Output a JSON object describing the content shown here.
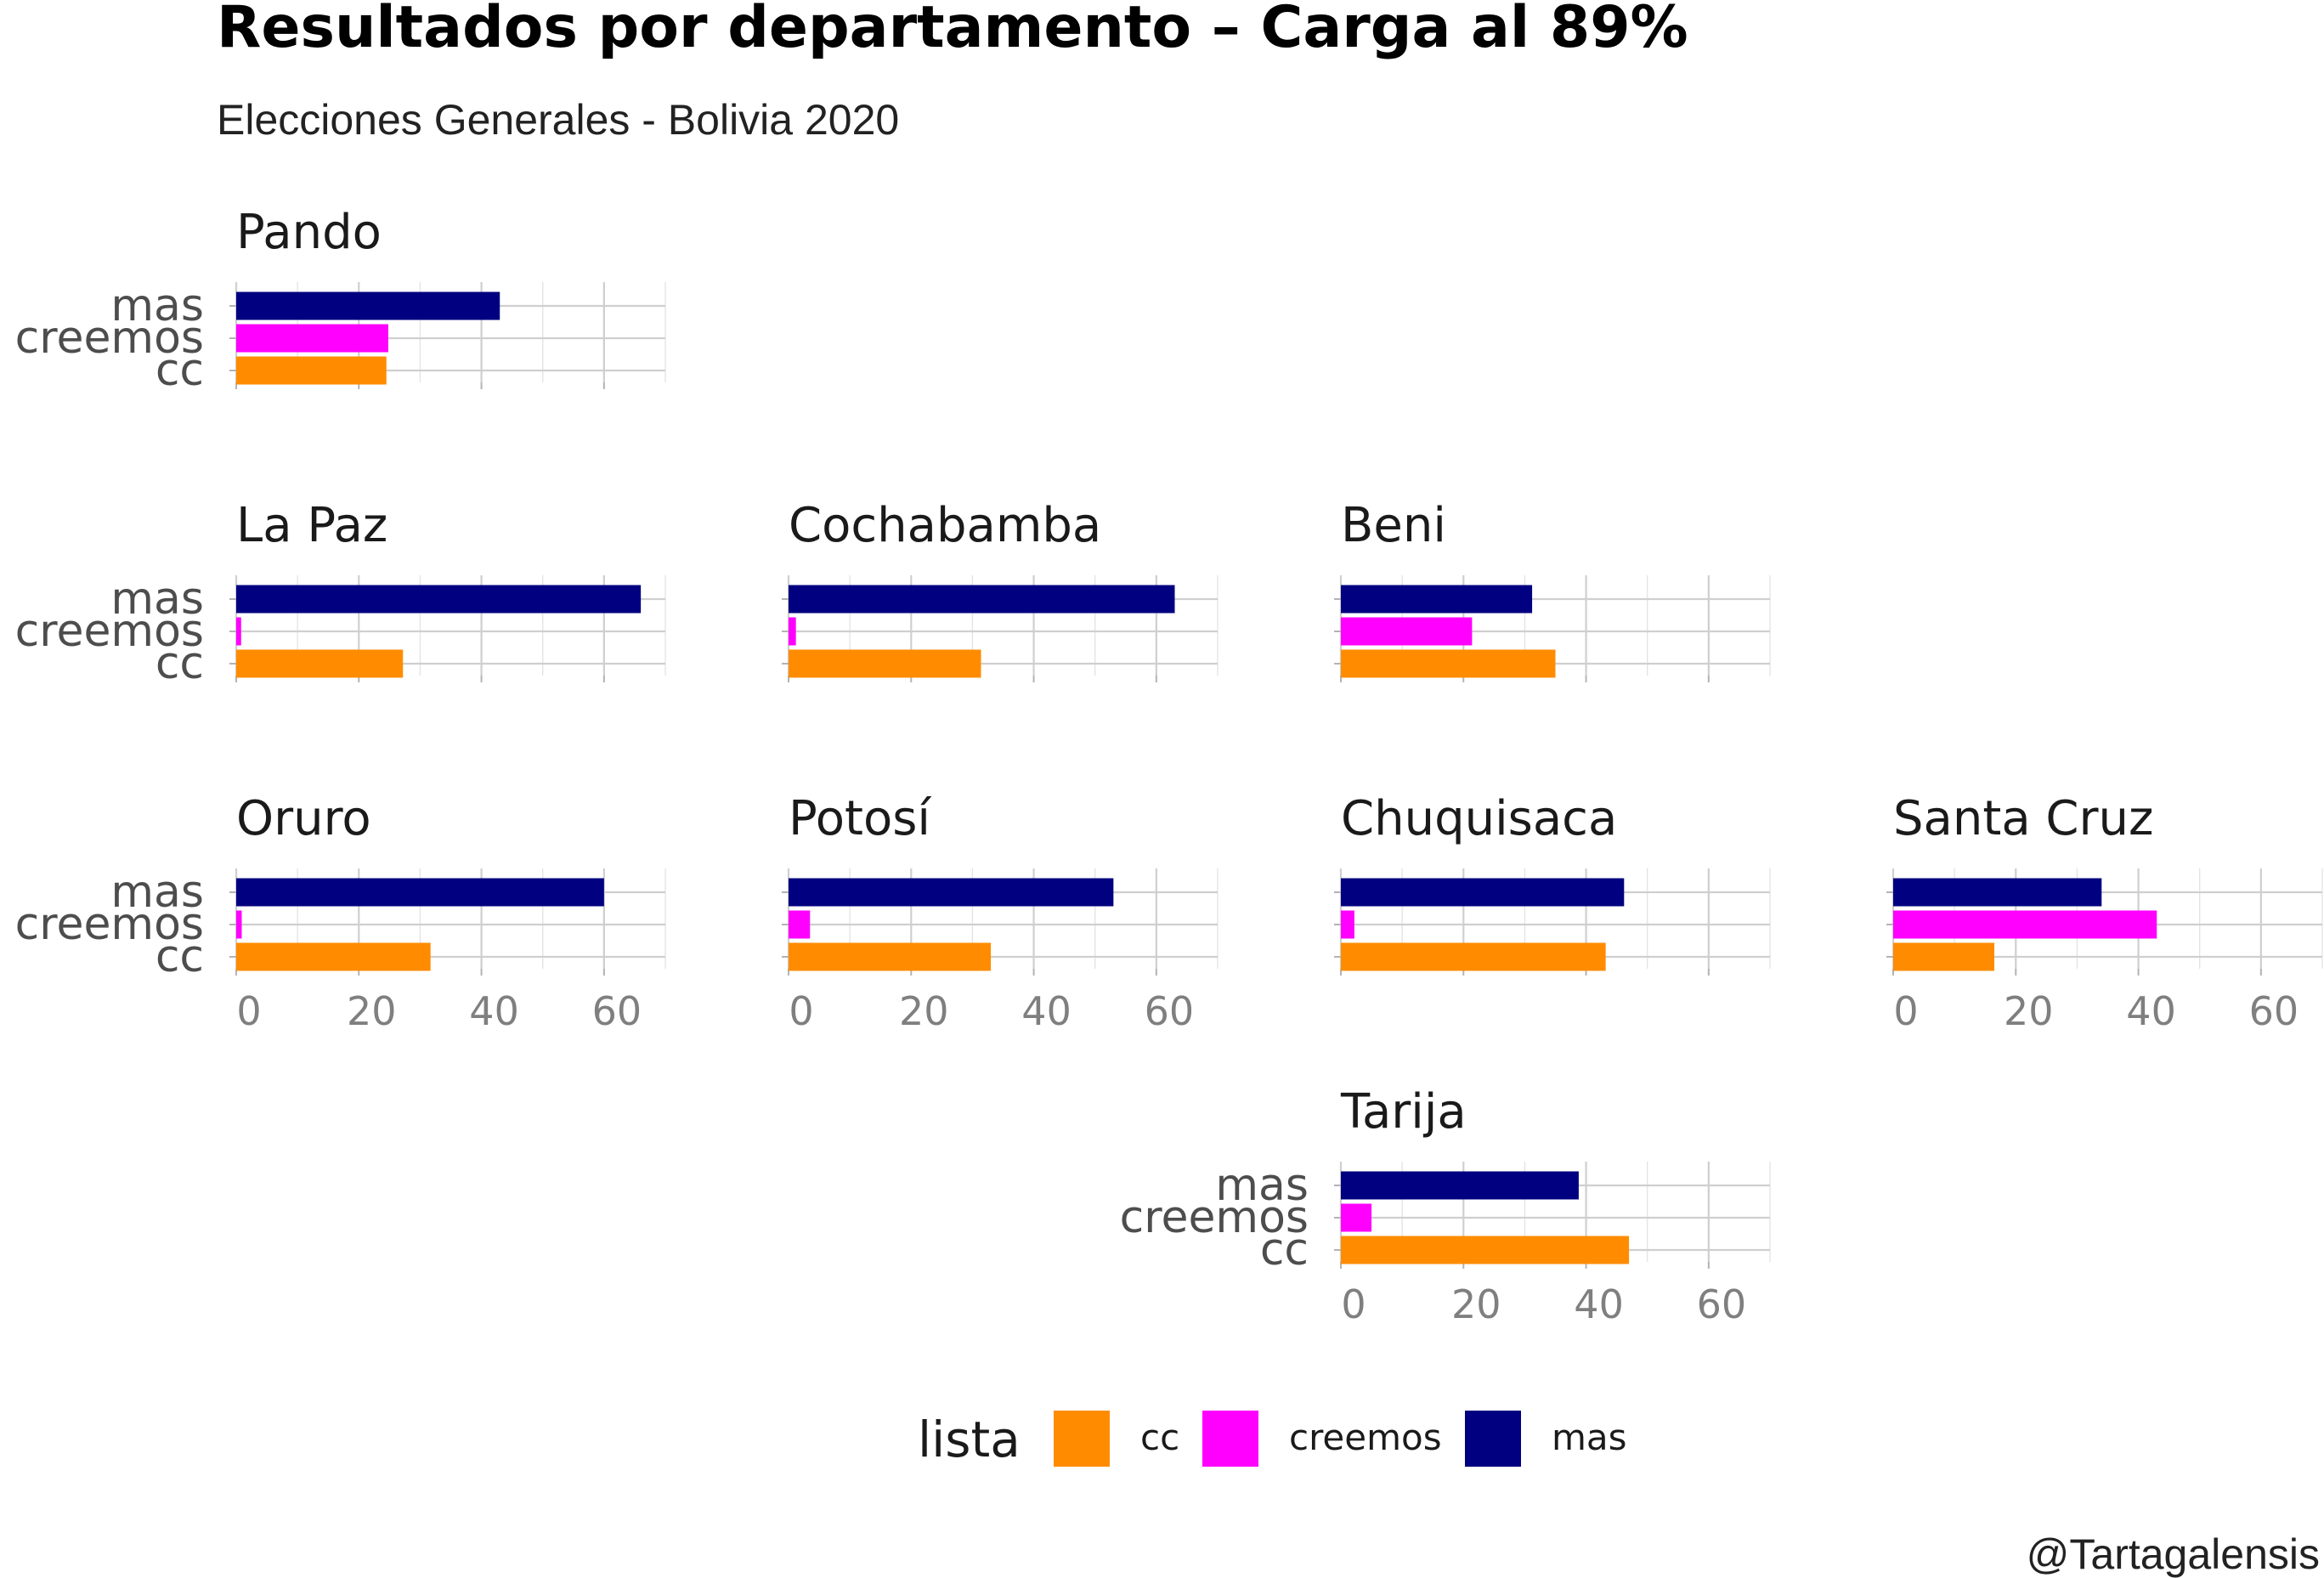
{
  "chart_data": {
    "type": "bar",
    "orientation": "horizontal",
    "title": "Resultados por departamento – Carga al 89%",
    "subtitle": "Elecciones Generales - Bolivia 2020",
    "caption": "@Tartagalensis",
    "legend": {
      "title": "lista",
      "position": "bottom",
      "entries": [
        {
          "key": "cc",
          "label": "cc"
        },
        {
          "key": "creemos",
          "label": "creemos"
        },
        {
          "key": "mas",
          "label": "mas"
        }
      ]
    },
    "colors": {
      "cc": "#FF8C00",
      "creemos": "#FF00FF",
      "mas": "#000080"
    },
    "categories": [
      "mas",
      "creemos",
      "cc"
    ],
    "xlim": [
      0,
      70
    ],
    "xticks": [
      "0",
      "20",
      "40",
      "60"
    ],
    "grid": true,
    "panels": [
      {
        "name": "Pando",
        "row": 0,
        "col": 0,
        "show_y": true,
        "show_x": false,
        "values": {
          "mas": 43.0,
          "creemos": 24.8,
          "cc": 24.5
        }
      },
      {
        "name": "La Paz",
        "row": 1,
        "col": 0,
        "show_y": true,
        "show_x": false,
        "values": {
          "mas": 66.0,
          "creemos": 0.8,
          "cc": 27.2
        }
      },
      {
        "name": "Cochabamba",
        "row": 1,
        "col": 1,
        "show_y": false,
        "show_x": false,
        "values": {
          "mas": 63.0,
          "creemos": 1.2,
          "cc": 31.4
        }
      },
      {
        "name": "Beni",
        "row": 1,
        "col": 2,
        "show_y": false,
        "show_x": false,
        "values": {
          "mas": 31.2,
          "creemos": 21.4,
          "cc": 35.0
        }
      },
      {
        "name": "Oruro",
        "row": 2,
        "col": 0,
        "show_y": true,
        "show_x": true,
        "values": {
          "mas": 60.0,
          "creemos": 0.9,
          "cc": 31.7
        }
      },
      {
        "name": "Potosí",
        "row": 2,
        "col": 1,
        "show_y": false,
        "show_x": true,
        "values": {
          "mas": 53.0,
          "creemos": 3.5,
          "cc": 33.0
        }
      },
      {
        "name": "Chuquisaca",
        "row": 2,
        "col": 2,
        "show_y": false,
        "show_x": false,
        "values": {
          "mas": 46.2,
          "creemos": 2.2,
          "cc": 43.2
        }
      },
      {
        "name": "Santa Cruz",
        "row": 2,
        "col": 3,
        "show_y": false,
        "show_x": true,
        "values": {
          "mas": 34.0,
          "creemos": 43.0,
          "cc": 16.5
        }
      },
      {
        "name": "Tarija",
        "row": 3,
        "col": 2,
        "show_y": true,
        "show_x": true,
        "values": {
          "mas": 38.8,
          "creemos": 5.0,
          "cc": 47.0
        }
      }
    ]
  }
}
